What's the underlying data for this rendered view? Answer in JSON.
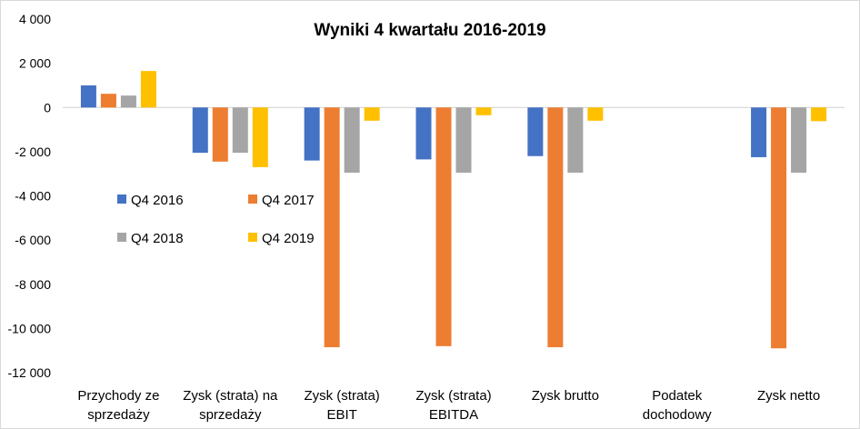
{
  "chart_data": {
    "type": "bar",
    "title": "Wyniki 4 kwartału 2016-2019",
    "categories": [
      [
        "Przychody ze",
        "sprzedaży"
      ],
      [
        "Zysk (strata) na",
        "sprzedaży"
      ],
      [
        "Zysk (strata)",
        "EBIT"
      ],
      [
        "Zysk (strata)",
        "EBITDA"
      ],
      [
        "Zysk brutto"
      ],
      [
        "Podatek",
        "dochodowy"
      ],
      [
        "Zysk netto"
      ]
    ],
    "series": [
      {
        "name": "Q4 2016",
        "color": "#4472c4",
        "values": [
          1000,
          -2050,
          -2400,
          -2350,
          -2200,
          0,
          -2250
        ]
      },
      {
        "name": "Q4 2017",
        "color": "#ed7d31",
        "values": [
          620,
          -2450,
          -10850,
          -10800,
          -10850,
          0,
          -10900
        ]
      },
      {
        "name": "Q4 2018",
        "color": "#a5a5a5",
        "values": [
          540,
          -2050,
          -2950,
          -2950,
          -2950,
          0,
          -2950
        ]
      },
      {
        "name": "Q4 2019",
        "color": "#ffc000",
        "values": [
          1650,
          -2700,
          -600,
          -350,
          -600,
          0,
          -620
        ]
      }
    ],
    "ylim": [
      -12000,
      4000
    ],
    "yticks": [
      4000,
      2000,
      0,
      -2000,
      -4000,
      -6000,
      -8000,
      -10000,
      -12000
    ],
    "ytick_labels": [
      "4 000",
      "2 000",
      "0",
      "-2 000",
      "-4 000",
      "-6 000",
      "-8 000",
      "-10 000",
      "-12 000"
    ],
    "grid": false,
    "legend_position": "inside-left"
  }
}
